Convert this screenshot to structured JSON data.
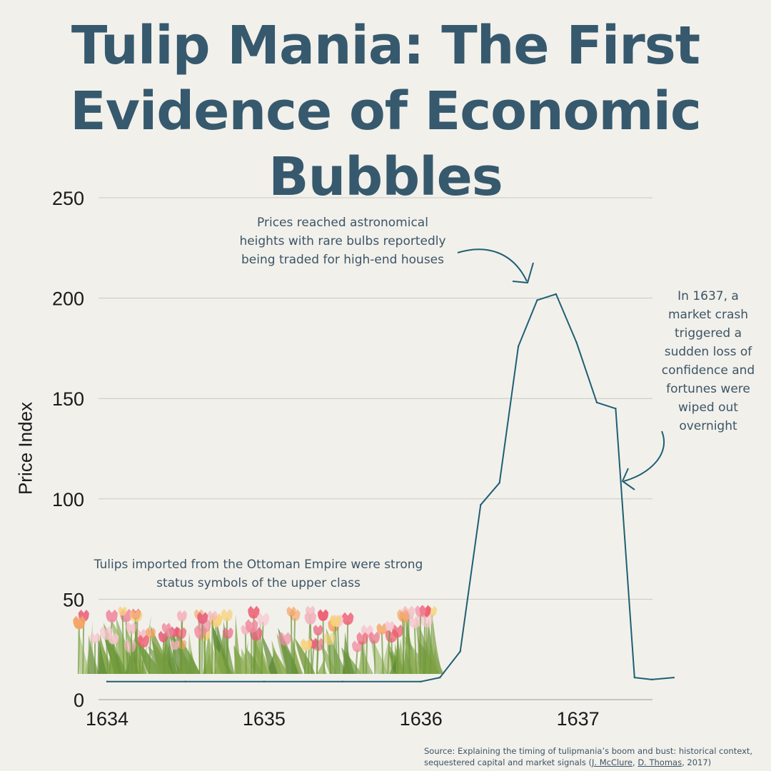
{
  "title_lines": [
    "Tulip Mania: The First",
    "Evidence of Economic",
    "Bubbles"
  ],
  "annotations": {
    "peak": [
      "Prices reached astronomical",
      "heights with rare bulbs reportedly",
      "being traded for high-end houses"
    ],
    "crash": [
      "In 1637, a",
      "market crash",
      "triggered a",
      "sudden loss of",
      "confidence and",
      "fortunes were",
      "wiped out",
      "overnight"
    ],
    "ottoman": [
      "Tulips imported from the Ottoman Empire were strong",
      "status symbols of the upper class"
    ]
  },
  "source": {
    "prefix": "Source: Explaining the timing of tulipmania’s boom and bust: historical context, sequestered capital and market signals (",
    "author1": "J. McClure",
    "sep": ", ",
    "author2": "D. Thomas",
    "suffix": ", 2017)"
  },
  "colors": {
    "line": "#1e5f74",
    "title": "#36596d",
    "grid": "#c8c8c4",
    "background": "#f2f0eb"
  },
  "decoration": "tulip-field-illustration",
  "chart_data": {
    "type": "line",
    "ylabel": "Price Index",
    "xlabel": "",
    "ylim": [
      0,
      250
    ],
    "yticks": [
      0,
      50,
      100,
      150,
      200,
      250
    ],
    "xlim": [
      1634.0,
      1637.42
    ],
    "xticks": [
      {
        "value": 1634.0,
        "label": "1634"
      },
      {
        "value": 1635.0,
        "label": "1635"
      },
      {
        "value": 1636.0,
        "label": "1636"
      },
      {
        "value": 1637.0,
        "label": "1637"
      }
    ],
    "grid": true,
    "series": [
      {
        "x": [
          1634.0,
          1634.5,
          1635.0,
          1635.5,
          1636.0,
          1636.12,
          1636.25,
          1636.38,
          1636.5,
          1636.62,
          1636.74,
          1636.86,
          1636.99,
          1637.12,
          1637.24,
          1637.36,
          1637.47,
          1637.61
        ],
        "y": [
          9,
          9,
          9,
          9,
          9,
          11,
          24,
          97,
          108,
          176,
          199,
          202,
          178,
          148,
          145,
          11,
          10,
          11
        ]
      }
    ]
  }
}
